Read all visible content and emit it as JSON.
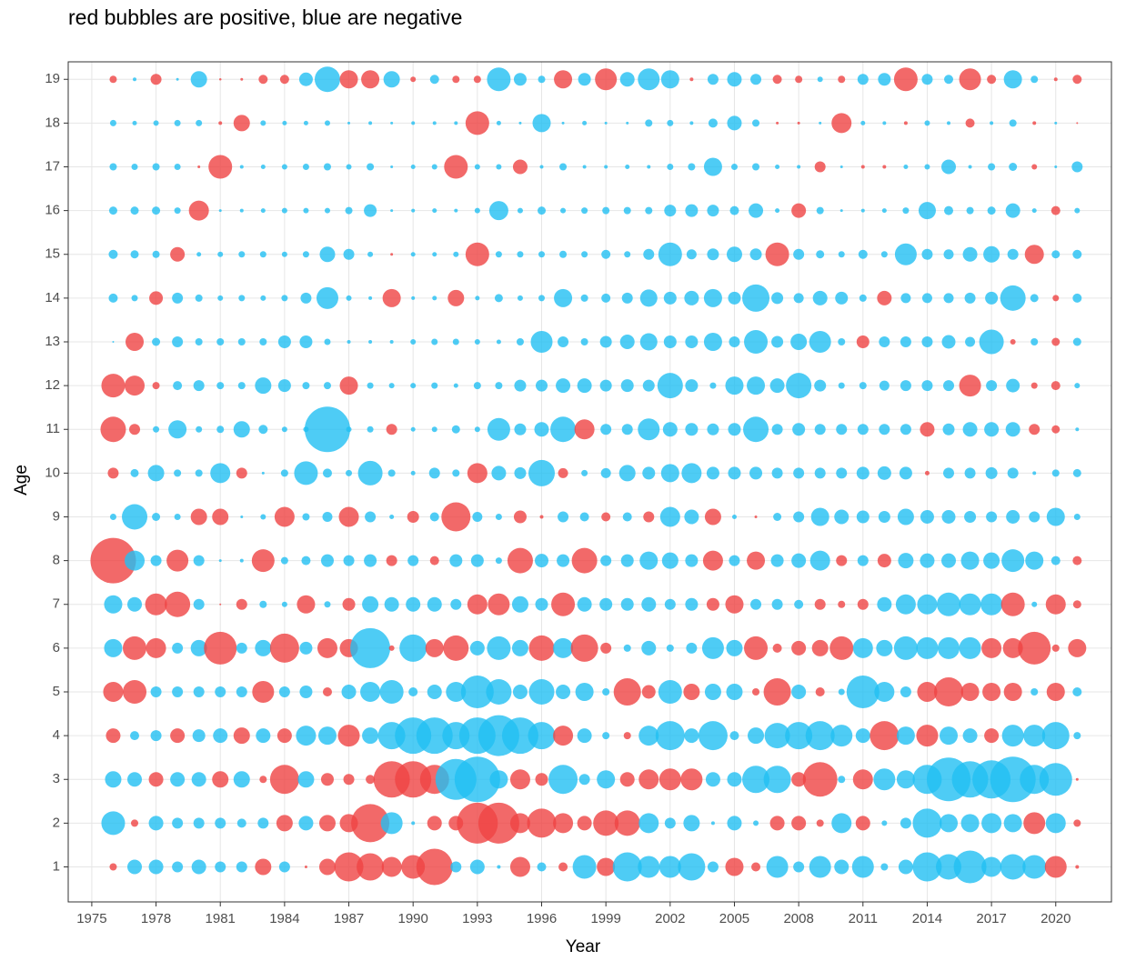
{
  "chart_data": {
    "type": "bubble",
    "title": "red bubbles are positive, blue are negative",
    "x_label": "Year",
    "y_label": "Age",
    "x": [
      1976,
      1977,
      1978,
      1979,
      1980,
      1981,
      1982,
      1983,
      1984,
      1985,
      1986,
      1987,
      1988,
      1989,
      1990,
      1991,
      1992,
      1993,
      1994,
      1995,
      1996,
      1997,
      1998,
      1999,
      2000,
      2001,
      2002,
      2003,
      2004,
      2005,
      2006,
      2007,
      2008,
      2009,
      2010,
      2011,
      2012,
      2013,
      2014,
      2015,
      2016,
      2017,
      2018,
      2019,
      2020,
      2021
    ],
    "y": [
      1,
      2,
      3,
      4,
      5,
      6,
      7,
      8,
      9,
      10,
      11,
      12,
      13,
      14,
      15,
      16,
      17,
      18,
      19
    ],
    "values": [
      [
        1.6,
        -3.2,
        -3.2,
        -2.4,
        -3.2,
        -2.4,
        -2.4,
        3.6,
        -2.4,
        0.6,
        3.6,
        6.4,
        6,
        4.4,
        5.2,
        8,
        -2.4,
        -3.2,
        -0.8,
        4.4,
        -2,
        2,
        -5.2,
        4,
        -6.4,
        -4.8,
        -4.8,
        -6,
        -2.4,
        4,
        2,
        -4.8,
        -2.4,
        -4.8,
        -3.2,
        -4.8,
        -1.6,
        -3.2,
        -6.4,
        -5.6,
        -7.2,
        -4.4,
        -5.6,
        -5.2,
        4.8,
        0.8
      ],
      [
        -5.2,
        1.6,
        -3.2,
        -2.4,
        -2.4,
        -2.4,
        -2,
        -2.4,
        3.6,
        -3.2,
        3.6,
        4,
        8.4,
        -4.8,
        -0.8,
        3.2,
        3.2,
        9,
        9,
        4.4,
        6.4,
        4.4,
        3.2,
        5.6,
        5.6,
        -4.4,
        -2.4,
        -3.6,
        -0.8,
        -3.2,
        -1.2,
        3.2,
        3.2,
        1.6,
        -4.4,
        3.2,
        -1.2,
        -2.4,
        -6.4,
        -4,
        -4,
        -4.4,
        -4,
        4.8,
        -4.4,
        1.6
      ],
      [
        -3.6,
        -3.2,
        3.2,
        -3.2,
        -3.2,
        3.6,
        -3.6,
        1.6,
        6.4,
        -3.6,
        2.8,
        2.4,
        2,
        8,
        8,
        6.4,
        -9,
        -10,
        -4,
        4.4,
        2.8,
        -6.4,
        -2.4,
        -4,
        3.2,
        4.4,
        4.8,
        4.8,
        -3.2,
        -3.2,
        -6,
        -6,
        3.2,
        7.6,
        -1.6,
        4.4,
        -4.8,
        -4,
        -6.4,
        -9.6,
        -8,
        -8.4,
        -10,
        -6.4,
        -7.2,
        0.6
      ],
      [
        3.2,
        -2,
        -2.4,
        3.2,
        -2.8,
        -3.2,
        3.6,
        -3.2,
        3.2,
        -4.4,
        -4,
        4.8,
        -3.6,
        -6,
        -8,
        -8,
        -6,
        -8,
        -9,
        -8,
        -6,
        4.4,
        -3.2,
        -1.6,
        1.6,
        -4.4,
        -6.4,
        -3.2,
        -6.4,
        -2,
        -3.6,
        -5.6,
        -6,
        -6.4,
        -4.8,
        -3.2,
        6.4,
        -4,
        4.8,
        -4,
        -3.2,
        3.2,
        -4.8,
        -4.8,
        -6,
        -1.6
      ],
      [
        4.4,
        5.2,
        -2.4,
        -2.4,
        -2.4,
        -2.4,
        -2.4,
        4.8,
        -2.4,
        -2.8,
        2,
        -3.2,
        -4.4,
        -5.2,
        -2,
        -3.2,
        -4.4,
        -7.2,
        -5.6,
        -3.2,
        -5.6,
        -3.2,
        -4,
        -1.6,
        6,
        3,
        -5.2,
        3.6,
        -3.6,
        -3.6,
        1.6,
        6,
        -3.2,
        2,
        -1.4,
        -7.2,
        -4.4,
        -2.4,
        4.4,
        6.4,
        4,
        4,
        4,
        -1.6,
        4,
        -2
      ],
      [
        -4,
        5.2,
        4.4,
        -2.4,
        -3.6,
        7.2,
        -2.4,
        -3.6,
        6.4,
        -2.8,
        4.4,
        4,
        -8.8,
        1.2,
        -6,
        4,
        5.6,
        -3.2,
        -5.2,
        -3.6,
        5.6,
        -4.4,
        6,
        2.4,
        -1.6,
        -3.2,
        -1.6,
        -2.4,
        -4.8,
        -3.6,
        5.2,
        2,
        3.2,
        3.6,
        5.2,
        -4.4,
        -3.6,
        -5.2,
        -4.8,
        -4.8,
        -4.8,
        4.4,
        4.4,
        7.2,
        1.6,
        4
      ],
      [
        -4,
        -3.2,
        4.8,
        5.6,
        -2.4,
        0.4,
        2.4,
        -1.6,
        -1.2,
        4,
        -1.4,
        2.8,
        -3.6,
        -3.2,
        -3.2,
        -3.2,
        -2.4,
        4.4,
        4.8,
        -3.6,
        -2.8,
        5.2,
        -3.2,
        -2.8,
        -2.8,
        -3.2,
        -2.4,
        -2.8,
        2.8,
        4,
        -2.4,
        -2.4,
        -2,
        2.4,
        1.6,
        2.4,
        -3.2,
        -4.4,
        -4.4,
        -5.2,
        -4.8,
        -4.8,
        5.2,
        -1.2,
        4.4,
        1.8
      ],
      [
        10,
        -4.4,
        -2.4,
        4.8,
        -2.4,
        -0.6,
        -0.8,
        5,
        -1.6,
        -2,
        -2.8,
        -2.4,
        -2.8,
        2.4,
        -2.4,
        2,
        -2.8,
        -2.8,
        -1.4,
        5.6,
        -3,
        -2.8,
        5.6,
        -2.4,
        -2.8,
        -4,
        -3.6,
        -2.8,
        4.4,
        -2.4,
        4,
        -2.8,
        -3.2,
        -4.4,
        2.4,
        -2.4,
        3,
        -3.4,
        -3.2,
        -3.2,
        -4,
        -3.6,
        -5,
        -4,
        -2,
        2
      ],
      [
        -1.4,
        -5.6,
        -1.8,
        -1.4,
        3.6,
        3.6,
        -0.6,
        -1.2,
        4.4,
        -1.6,
        -2.2,
        4.4,
        -2.4,
        -1,
        2.6,
        -2,
        6.4,
        -2.2,
        -1.4,
        2.8,
        0.8,
        -2.4,
        -2,
        2,
        -2,
        2.4,
        -4.4,
        -3.2,
        3.6,
        -1,
        0.6,
        -1.8,
        -2.4,
        -4,
        -3.2,
        -2.8,
        -2.6,
        -3.6,
        -3,
        -3,
        -2.6,
        -2.4,
        -3,
        -2.4,
        -4,
        -1.4
      ],
      [
        2.4,
        -1.8,
        -3.6,
        -1.6,
        -1.6,
        -4.4,
        2.4,
        -0.6,
        -1.6,
        -5.2,
        -2,
        -1.4,
        -5.4,
        -1.6,
        -1,
        -2.4,
        -1.6,
        4.4,
        -3.2,
        -2.6,
        -5.8,
        2.2,
        -1.4,
        -2.2,
        -3.6,
        -2.8,
        -4,
        -4.4,
        -2.8,
        -2.8,
        -2.8,
        -2.4,
        -2.4,
        -2.4,
        -2.4,
        -2.8,
        -3,
        -2.8,
        1,
        -2.4,
        -2.4,
        -2.6,
        -2.4,
        -0.8,
        -1.6,
        -1.8
      ],
      [
        5.6,
        2.4,
        -1.4,
        -4,
        -1.4,
        -1.6,
        -3.6,
        -2,
        -1.2,
        -1.2,
        -10,
        -1.2,
        -1.4,
        2.4,
        -1,
        -1.2,
        -1.8,
        -1.2,
        -5,
        -2.6,
        -3.2,
        -5.6,
        4.4,
        -2.4,
        -2.4,
        -4.8,
        -3.2,
        -2.8,
        -2.6,
        -2.8,
        -5.6,
        -2.4,
        -2.8,
        -2.4,
        -2.4,
        -2.4,
        -2.4,
        -2.4,
        3.2,
        -2.6,
        -3.2,
        -3.2,
        -3.2,
        2.4,
        1.8,
        -0.8
      ],
      [
        5.2,
        4.4,
        1.6,
        -2,
        -2.4,
        -1.6,
        -1.6,
        -3.6,
        -2.8,
        -1.6,
        -1.6,
        4,
        -1.4,
        -1.2,
        -1.2,
        -1.4,
        -1,
        -1.6,
        -1.6,
        -2.6,
        -2.6,
        -3.2,
        -3.2,
        -2.6,
        -2.8,
        -2.6,
        -5.6,
        -2.8,
        -1.4,
        -4,
        -4,
        -3.2,
        -5.6,
        -2.6,
        -1.4,
        -1.6,
        -2.2,
        -2.4,
        -2.4,
        -2.4,
        4.8,
        -2.4,
        -3,
        1.4,
        2,
        -1.2
      ],
      [
        -0.4,
        4,
        -1.8,
        -2.4,
        -1.6,
        -1.6,
        -1.6,
        -1.6,
        -2.8,
        -2.8,
        -1.4,
        -0.8,
        -0.8,
        -0.8,
        -1.2,
        -1.4,
        -1.4,
        -1.2,
        -1,
        -1.6,
        -4.8,
        -2.4,
        -1.6,
        -2.6,
        -3.2,
        -3.8,
        -2.8,
        -2.8,
        -4,
        -2.4,
        -5.2,
        -2.6,
        -3.6,
        -4.8,
        -1.6,
        2.8,
        -2.4,
        -2.4,
        -2.4,
        -3,
        -2.2,
        -5.4,
        1.2,
        -1.6,
        1.8,
        -1.8
      ],
      [
        -2,
        -1.4,
        3,
        -2.4,
        -1.6,
        -1.2,
        -1.4,
        -1.2,
        -1.4,
        -2.4,
        -4.8,
        -1.2,
        -0.8,
        4,
        -0.8,
        -1,
        3.6,
        -1,
        -1.8,
        -1.2,
        -1.4,
        -4,
        -1.6,
        -2,
        -2.4,
        -3.8,
        -2.8,
        -3.2,
        -4,
        -2.8,
        -6,
        -2.6,
        -2.2,
        -3.2,
        -2.8,
        -1.6,
        3.2,
        -2.2,
        -2.2,
        -2.2,
        -2.4,
        -2.8,
        -5.6,
        -1.8,
        1.4,
        -2
      ],
      [
        -2,
        -1.8,
        -1.6,
        3.2,
        -1,
        -1.2,
        -1.4,
        -1.4,
        -1.2,
        -1.4,
        -3.4,
        -2.4,
        -1.2,
        0.6,
        -1,
        -1,
        -1.2,
        5.2,
        -1.4,
        -1.4,
        -1.4,
        -1.6,
        -1.4,
        -2,
        -1.4,
        -2.4,
        -5.2,
        -2.2,
        -2.6,
        -3.4,
        -2.6,
        5.2,
        -2.4,
        -1.8,
        -1.4,
        -2,
        -1.4,
        -4.8,
        -2.4,
        -2.2,
        -3.2,
        -3.6,
        -2.4,
        4.2,
        -1.8,
        -2
      ],
      [
        -1.8,
        -1.8,
        -1.8,
        -1.4,
        4.4,
        -0.6,
        -0.8,
        -1,
        -1.2,
        -1.2,
        -1.2,
        -1.6,
        -2.8,
        -0.6,
        -0.8,
        -1,
        -0.8,
        -1.2,
        -4.2,
        -1.2,
        -1.8,
        -1.2,
        -1.4,
        -1.6,
        -1.6,
        -1.6,
        -2.6,
        -2.8,
        -2.6,
        -2,
        -3.2,
        -1,
        3.2,
        -1.6,
        -0.6,
        -0.8,
        -1,
        -1.4,
        -3.8,
        -2,
        -1.6,
        -1.8,
        -3.2,
        -1,
        2,
        -1.2
      ],
      [
        -1.6,
        -1.4,
        -1.6,
        -1.4,
        0.6,
        5.2,
        -0.8,
        -1,
        -1.2,
        -1.4,
        -1.6,
        -1.2,
        -1.6,
        -0.6,
        -1,
        -1.2,
        5.2,
        -1.2,
        -1.2,
        3.2,
        -0.8,
        -1.6,
        -0.8,
        -0.8,
        -1,
        -0.8,
        -1.4,
        -1.6,
        -4,
        -1.4,
        -1.6,
        -1,
        -0.8,
        2.4,
        -0.6,
        0.8,
        0.8,
        -1,
        -1.2,
        -3.2,
        -0.8,
        -1.6,
        -1.8,
        1.2,
        -0.6,
        -2.4
      ],
      [
        -1.4,
        -1,
        -1.2,
        -1.4,
        -1.4,
        0.8,
        3.6,
        -1.2,
        -1,
        -1,
        -1.2,
        -0.6,
        -0.8,
        -0.6,
        -0.8,
        -0.8,
        -0.8,
        5.2,
        -1,
        -0.6,
        -4,
        -0.6,
        -1,
        -0.6,
        -0.6,
        -1.6,
        -1.4,
        -0.8,
        -2,
        -3.2,
        -1.6,
        0.6,
        0.6,
        -0.6,
        4.4,
        -1,
        -0.8,
        0.8,
        -1.2,
        -0.8,
        2,
        -0.8,
        -1.6,
        0.8,
        -0.6,
        0.4
      ],
      [
        1.6,
        -0.8,
        2.4,
        -0.6,
        -3.6,
        0.5,
        0.6,
        2,
        2,
        -3,
        -5.6,
        4,
        4,
        -3.6,
        1.2,
        -2,
        1.6,
        1.6,
        -5.2,
        -2.8,
        -1.6,
        4,
        -2.8,
        4.8,
        -3.2,
        -4.8,
        -4,
        0.8,
        -2.4,
        -3.2,
        -2.4,
        2,
        1.6,
        -1.2,
        1.6,
        -2.4,
        -2.8,
        5.2,
        -2.4,
        -2,
        4.8,
        2,
        -4,
        -1.6,
        0.8,
        2
      ]
    ],
    "positive_color": "#ef4444",
    "negative_color": "#22bff2",
    "opacity": 0.8,
    "xlim": [
      1973.9,
      2022.6
    ],
    "ylim": [
      0.2,
      19.4
    ],
    "xticks": [
      1975,
      1978,
      1981,
      1984,
      1987,
      1990,
      1993,
      1996,
      1999,
      2002,
      2005,
      2008,
      2011,
      2014,
      2017,
      2020
    ],
    "yticks": [
      1,
      2,
      3,
      4,
      5,
      6,
      7,
      8,
      9,
      10,
      11,
      12,
      13,
      14,
      15,
      16,
      17,
      18,
      19
    ],
    "grid": true
  }
}
